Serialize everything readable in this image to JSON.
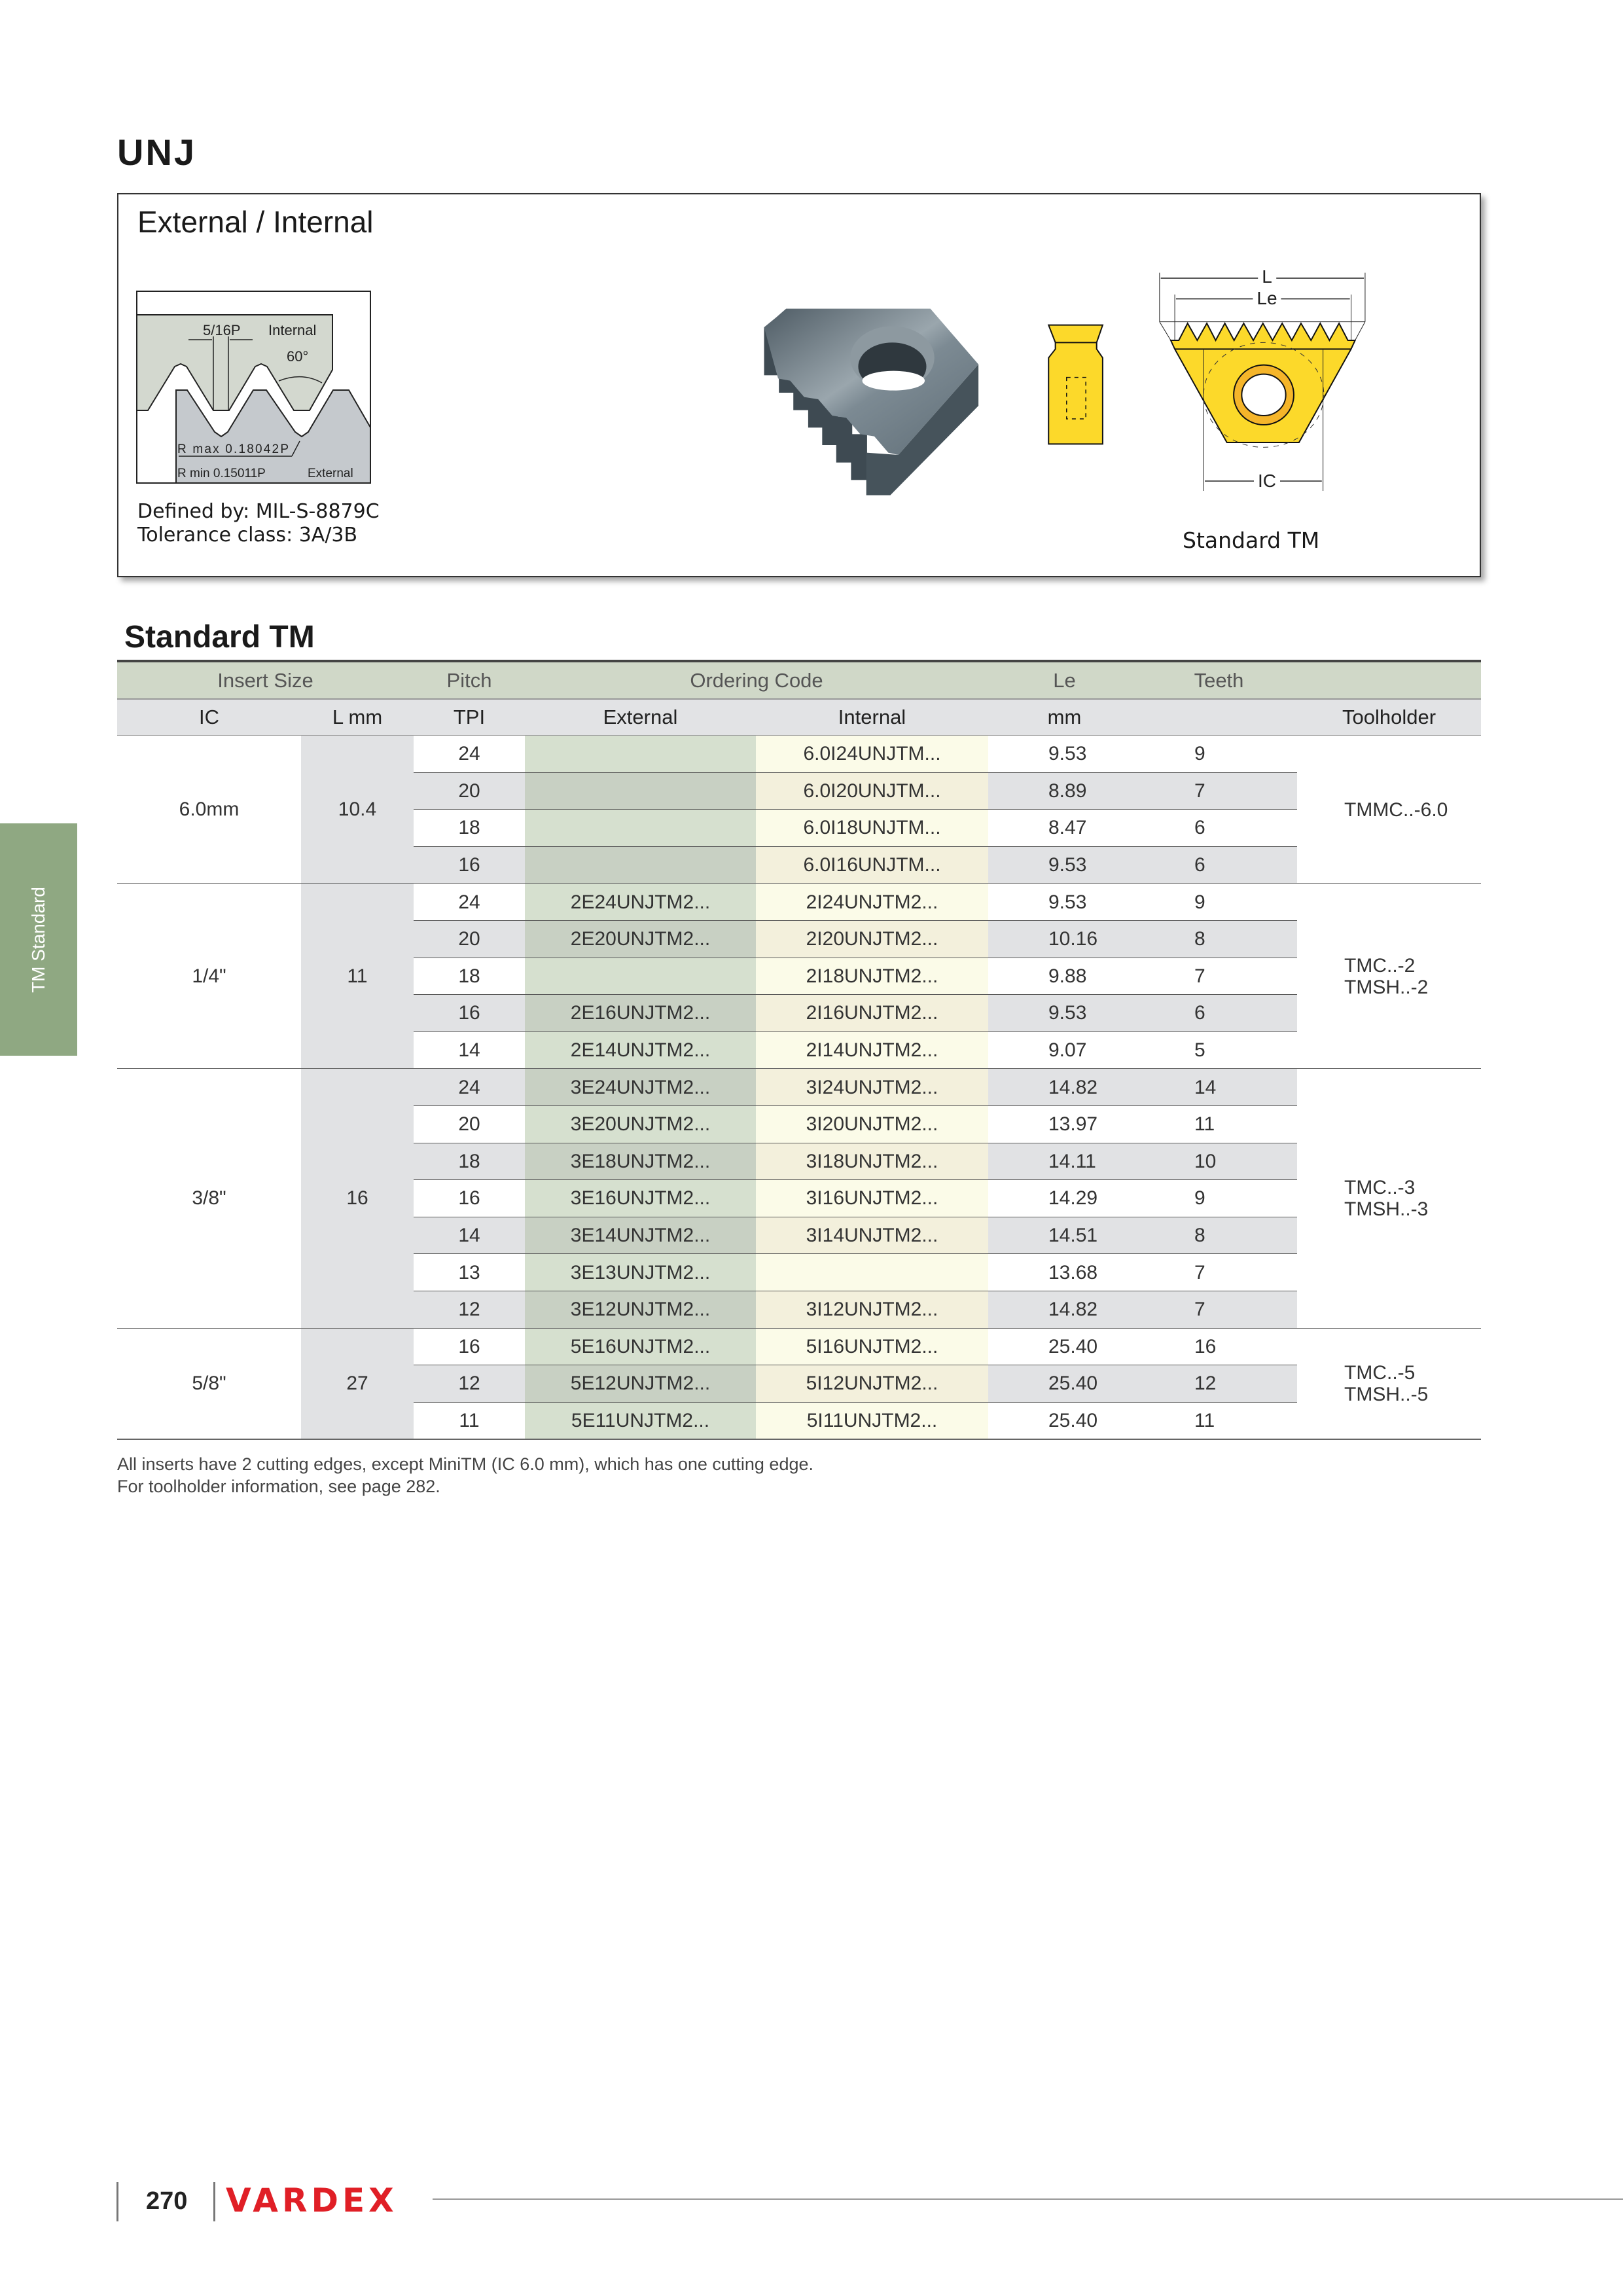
{
  "page": {
    "title": "UNJ",
    "side_tab": "TM Standard",
    "page_number": "270",
    "brand_logo": "VARDEX"
  },
  "info_box": {
    "title": "External / Internal",
    "thread_profile": {
      "pitch_fraction": "5/16P",
      "internal_label": "Internal",
      "angle": "60°",
      "r_max": "R max 0.18042P",
      "r_min": "R min 0.15011P",
      "external_label": "External"
    },
    "defined_by": "Defined by: MIL-S-8879C",
    "tolerance": "Tolerance class: 3A/3B",
    "dimensions": {
      "L": "L",
      "Le": "Le",
      "IC": "IC"
    },
    "insert_caption": "Standard TM",
    "colors": {
      "insert_yellow": "#fcd92a",
      "ring_orange": "#f5b52a",
      "steel": "#6d7b84"
    }
  },
  "section_title": "Standard TM",
  "table": {
    "header_row1": [
      "Insert Size",
      "Pitch",
      "Ordering Code",
      "Le",
      "Teeth"
    ],
    "header_row2": [
      "IC",
      "L mm",
      "TPI",
      "External",
      "Internal",
      "mm",
      "",
      "Toolholder"
    ],
    "groups": [
      {
        "ic": "6.0mm",
        "l_mm": "10.4",
        "toolholder": [
          "TMMC..-6.0"
        ],
        "rows": [
          {
            "tpi": "24",
            "external": "",
            "internal": "6.0I24UNJTM...",
            "le": "9.53",
            "teeth": "9"
          },
          {
            "tpi": "20",
            "external": "",
            "internal": "6.0I20UNJTM...",
            "le": "8.89",
            "teeth": "7"
          },
          {
            "tpi": "18",
            "external": "",
            "internal": "6.0I18UNJTM...",
            "le": "8.47",
            "teeth": "6"
          },
          {
            "tpi": "16",
            "external": "",
            "internal": "6.0I16UNJTM...",
            "le": "9.53",
            "teeth": "6"
          }
        ]
      },
      {
        "ic": "1/4\"",
        "l_mm": "11",
        "toolholder": [
          "TMC..-2",
          "TMSH..-2"
        ],
        "rows": [
          {
            "tpi": "24",
            "external": "2E24UNJTM2...",
            "internal": "2I24UNJTM2...",
            "le": "9.53",
            "teeth": "9"
          },
          {
            "tpi": "20",
            "external": "2E20UNJTM2...",
            "internal": "2I20UNJTM2...",
            "le": "10.16",
            "teeth": "8"
          },
          {
            "tpi": "18",
            "external": "",
            "internal": "2I18UNJTM2...",
            "le": "9.88",
            "teeth": "7"
          },
          {
            "tpi": "16",
            "external": "2E16UNJTM2...",
            "internal": "2I16UNJTM2...",
            "le": "9.53",
            "teeth": "6"
          },
          {
            "tpi": "14",
            "external": "2E14UNJTM2...",
            "internal": "2I14UNJTM2...",
            "le": "9.07",
            "teeth": "5"
          }
        ]
      },
      {
        "ic": "3/8\"",
        "l_mm": "16",
        "toolholder": [
          "TMC..-3",
          "TMSH..-3"
        ],
        "rows": [
          {
            "tpi": "24",
            "external": "3E24UNJTM2...",
            "internal": "3I24UNJTM2...",
            "le": "14.82",
            "teeth": "14"
          },
          {
            "tpi": "20",
            "external": "3E20UNJTM2...",
            "internal": "3I20UNJTM2...",
            "le": "13.97",
            "teeth": "11"
          },
          {
            "tpi": "18",
            "external": "3E18UNJTM2...",
            "internal": "3I18UNJTM2...",
            "le": "14.11",
            "teeth": "10"
          },
          {
            "tpi": "16",
            "external": "3E16UNJTM2...",
            "internal": "3I16UNJTM2...",
            "le": "14.29",
            "teeth": "9"
          },
          {
            "tpi": "14",
            "external": "3E14UNJTM2...",
            "internal": "3I14UNJTM2...",
            "le": "14.51",
            "teeth": "8"
          },
          {
            "tpi": "13",
            "external": "3E13UNJTM2...",
            "internal": "",
            "le": "13.68",
            "teeth": "7"
          },
          {
            "tpi": "12",
            "external": "3E12UNJTM2...",
            "internal": "3I12UNJTM2...",
            "le": "14.82",
            "teeth": "7"
          }
        ]
      },
      {
        "ic": "5/8\"",
        "l_mm": "27",
        "toolholder": [
          "TMC..-5",
          "TMSH..-5"
        ],
        "rows": [
          {
            "tpi": "16",
            "external": "5E16UNJTM2...",
            "internal": "5I16UNJTM2...",
            "le": "25.40",
            "teeth": "16"
          },
          {
            "tpi": "12",
            "external": "5E12UNJTM2...",
            "internal": "5I12UNJTM2...",
            "le": "25.40",
            "teeth": "12"
          },
          {
            "tpi": "11",
            "external": "5E11UNJTM2...",
            "internal": "5I11UNJTM2...",
            "le": "25.40",
            "teeth": "11"
          }
        ]
      }
    ],
    "colors": {
      "header_row1_bg": "#d0d8c8",
      "header_row2_bg": "#e2e3e5",
      "gray_cell": "#e1e2e4",
      "external_light": "#d6e0cf",
      "external_dark": "#c8d0c3",
      "internal_light": "#fbfbe8",
      "internal_dark": "#f3f0dc"
    }
  },
  "notes": [
    "All inserts have 2 cutting edges, except MiniTM (IC 6.0 mm), which has one cutting edge.",
    "For toolholder information, see page 282."
  ]
}
